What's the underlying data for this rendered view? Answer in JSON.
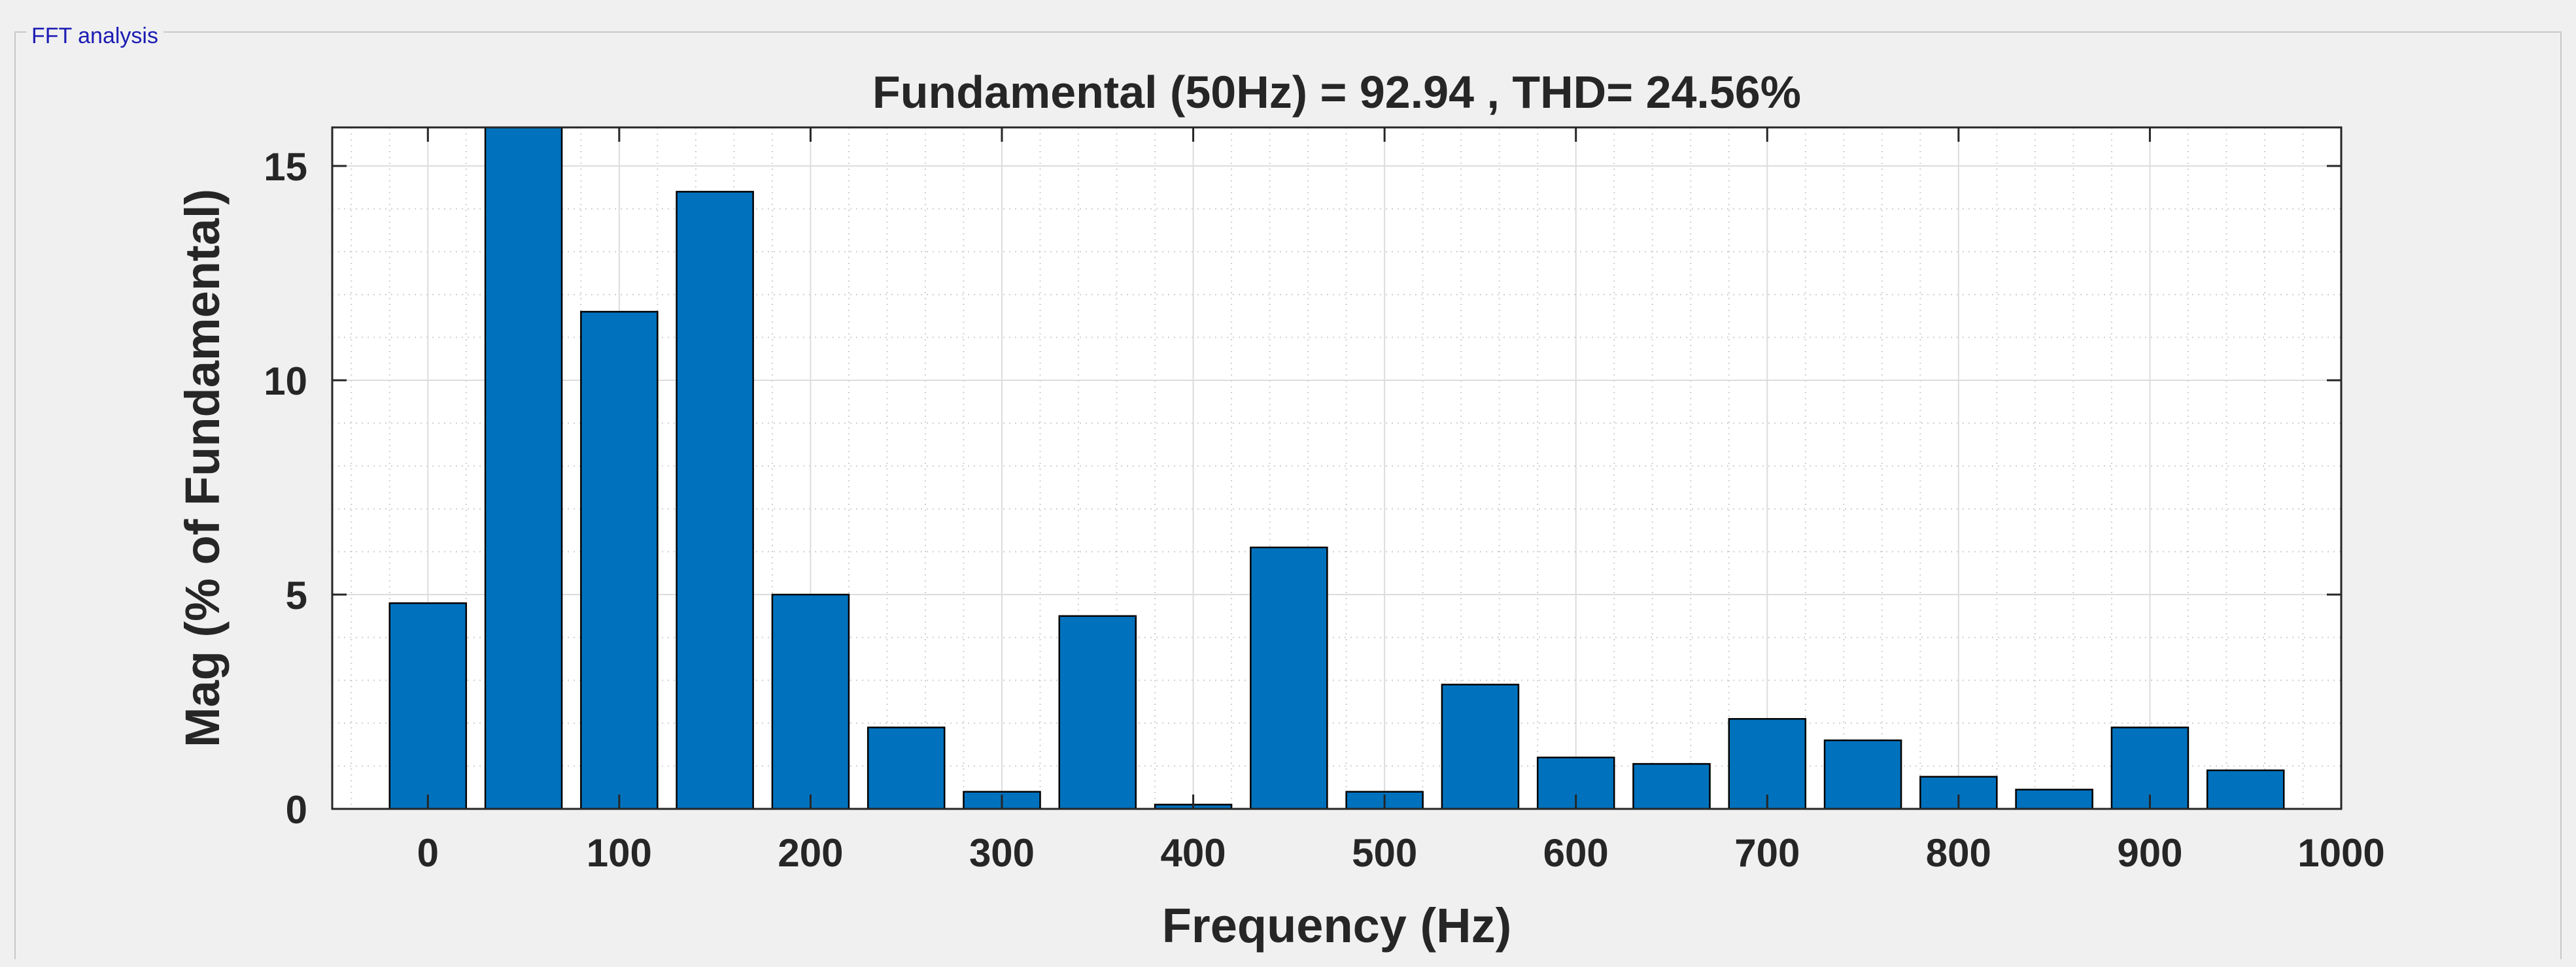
{
  "panel": {
    "title": "FFT analysis"
  },
  "chart_data": {
    "type": "bar",
    "title": "Fundamental (50Hz) = 92.94 , THD= 24.56%",
    "xlabel": "Frequency (Hz)",
    "ylabel": "Mag (% of Fundamental)",
    "x": [
      0,
      50,
      100,
      150,
      200,
      250,
      300,
      350,
      400,
      450,
      500,
      550,
      600,
      650,
      700,
      750,
      800,
      850,
      900,
      950
    ],
    "values": [
      4.8,
      16,
      11.6,
      14.4,
      5.0,
      1.9,
      0.4,
      4.5,
      0.1,
      6.1,
      0.4,
      2.9,
      1.2,
      1.05,
      2.1,
      1.6,
      0.75,
      0.45,
      1.9,
      0.9
    ],
    "xlim": [
      -50,
      1000
    ],
    "ylim": [
      0,
      15.9
    ],
    "xticks": [
      0,
      100,
      200,
      300,
      400,
      500,
      600,
      700,
      800,
      900,
      1000
    ],
    "yticks": [
      0,
      5,
      10,
      15
    ],
    "grid": true,
    "minor_grid": true,
    "bar_color": "#0072bd",
    "edge_color": "#000000"
  }
}
